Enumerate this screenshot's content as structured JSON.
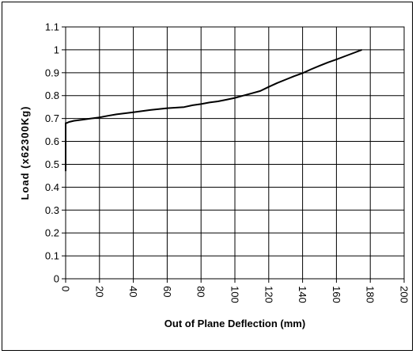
{
  "chart_data": {
    "type": "line",
    "title": "",
    "xlabel": "Out of Plane Deflection (mm)",
    "ylabel": "Load (x62300Kg)",
    "xlim": [
      0,
      200
    ],
    "ylim": [
      0,
      1.1
    ],
    "x_ticks": [
      "0",
      "20",
      "40",
      "60",
      "80",
      "100",
      "120",
      "140",
      "160",
      "180",
      "200"
    ],
    "y_ticks": [
      "0",
      "0.1",
      "0.2",
      "0.3",
      "0.4",
      "0.5",
      "0.6",
      "0.7",
      "0.8",
      "0.9",
      "1",
      "1.1"
    ],
    "grid": true,
    "legend": false,
    "line_color": "#000000",
    "series": [
      {
        "x": [
          0,
          0,
          0,
          0.5,
          2,
          5,
          10,
          15,
          20,
          25,
          30,
          40,
          50,
          60,
          70,
          75,
          80,
          85,
          90,
          95,
          100,
          105,
          110,
          115,
          120,
          125,
          130,
          135,
          140,
          145,
          150,
          155,
          160,
          165,
          170,
          175
        ],
        "y": [
          0.47,
          0.6,
          0.68,
          0.68,
          0.685,
          0.69,
          0.695,
          0.7,
          0.705,
          0.712,
          0.718,
          0.727,
          0.737,
          0.745,
          0.75,
          0.758,
          0.763,
          0.77,
          0.775,
          0.782,
          0.79,
          0.8,
          0.81,
          0.82,
          0.838,
          0.855,
          0.87,
          0.885,
          0.898,
          0.915,
          0.93,
          0.945,
          0.958,
          0.972,
          0.986,
          1.0
        ]
      }
    ]
  }
}
